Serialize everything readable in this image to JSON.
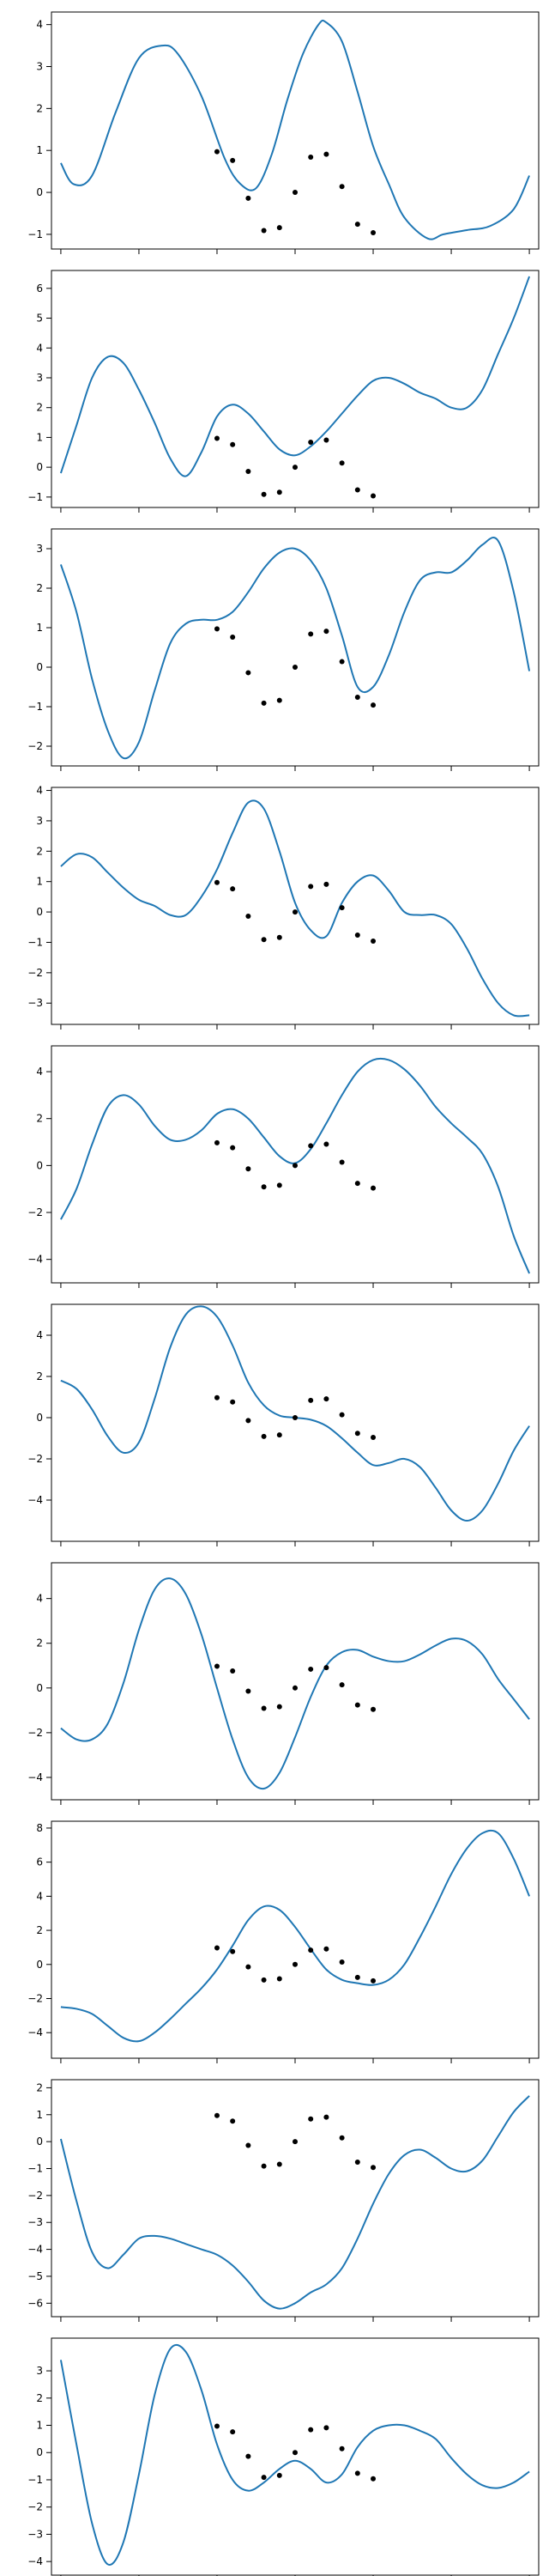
{
  "chart_data": {
    "type": "line",
    "title": "",
    "xlabel": "",
    "ylabel": "",
    "xlim": [
      -15.6,
      15.6
    ],
    "xticks": [
      -15,
      -10,
      -5,
      0,
      5,
      10,
      15
    ],
    "shared_x": true,
    "grid": false,
    "legend": "none",
    "colors": {
      "curve": "#1f77b4",
      "points": "#000000"
    },
    "observations": {
      "x": [
        -5,
        -4,
        -3,
        -2,
        -1,
        0,
        1,
        2,
        3,
        4,
        5
      ],
      "y": [
        0.97,
        0.76,
        -0.14,
        -0.91,
        -0.84,
        0.0,
        0.84,
        0.91,
        0.14,
        -0.76,
        -0.96
      ]
    },
    "panels": [
      {
        "ylim": [
          -1.35,
          4.3
        ],
        "yticks": [
          -1,
          0,
          1,
          2,
          3,
          4
        ],
        "curve": {
          "x": [
            -15,
            -14.2,
            -13,
            -11.5,
            -10,
            -8.5,
            -7.5,
            -6,
            -4.5,
            -3.5,
            -2.5,
            -1.5,
            -0.5,
            0.5,
            1.5,
            2,
            3,
            4,
            5,
            6,
            7,
            8.5,
            9.5,
            11,
            12.5,
            14,
            15
          ],
          "y": [
            0.7,
            0.2,
            0.4,
            1.9,
            3.2,
            3.5,
            3.3,
            2.3,
            0.8,
            0.2,
            0.1,
            0.9,
            2.2,
            3.3,
            4.0,
            4.05,
            3.6,
            2.4,
            1.1,
            0.2,
            -0.6,
            -1.1,
            -1.0,
            -0.9,
            -0.8,
            -0.4,
            0.4
          ]
        }
      },
      {
        "ylim": [
          -1.35,
          6.6
        ],
        "yticks": [
          -1,
          0,
          1,
          2,
          3,
          4,
          5,
          6
        ],
        "curve": {
          "x": [
            -15,
            -14,
            -13,
            -12,
            -11,
            -10,
            -9,
            -8,
            -7,
            -6,
            -5,
            -4,
            -3,
            -2,
            -1,
            0,
            1,
            2,
            3,
            4,
            5,
            6,
            7,
            8,
            9,
            10,
            11,
            12,
            13,
            14,
            15
          ],
          "y": [
            -0.2,
            1.4,
            3.0,
            3.7,
            3.5,
            2.6,
            1.5,
            0.3,
            -0.3,
            0.5,
            1.7,
            2.1,
            1.8,
            1.2,
            0.6,
            0.4,
            0.7,
            1.2,
            1.8,
            2.4,
            2.9,
            3.0,
            2.8,
            2.5,
            2.3,
            2.0,
            2.0,
            2.6,
            3.8,
            5.0,
            6.4
          ]
        }
      },
      {
        "ylim": [
          -2.5,
          3.5
        ],
        "yticks": [
          -2,
          -1,
          0,
          1,
          2,
          3
        ],
        "curve": {
          "x": [
            -15,
            -14,
            -13,
            -12,
            -11,
            -10,
            -9,
            -8,
            -7,
            -6,
            -5,
            -4,
            -3,
            -2,
            -1,
            0,
            1,
            2,
            3,
            4,
            5,
            6,
            7,
            8,
            9,
            10,
            11,
            12,
            13,
            14,
            15
          ],
          "y": [
            2.6,
            1.4,
            -0.3,
            -1.6,
            -2.3,
            -1.9,
            -0.6,
            0.6,
            1.1,
            1.2,
            1.2,
            1.4,
            1.9,
            2.5,
            2.9,
            3.0,
            2.7,
            2.0,
            0.8,
            -0.5,
            -0.5,
            0.3,
            1.4,
            2.2,
            2.4,
            2.4,
            2.7,
            3.1,
            3.2,
            1.9,
            -0.1
          ]
        }
      },
      {
        "ylim": [
          -3.7,
          4.1
        ],
        "yticks": [
          -3,
          -2,
          -1,
          0,
          1,
          2,
          3,
          4
        ],
        "curve": {
          "x": [
            -15,
            -14,
            -13,
            -12,
            -11,
            -10,
            -9,
            -8,
            -7,
            -6,
            -5,
            -4,
            -3,
            -2,
            -1,
            0,
            1,
            2,
            3,
            4,
            5,
            6,
            7,
            8,
            9,
            10,
            11,
            12,
            13,
            14,
            15
          ],
          "y": [
            1.5,
            1.9,
            1.8,
            1.3,
            0.8,
            0.4,
            0.2,
            -0.1,
            -0.1,
            0.5,
            1.4,
            2.6,
            3.6,
            3.4,
            2.0,
            0.3,
            -0.6,
            -0.8,
            0.3,
            1.0,
            1.2,
            0.7,
            0.0,
            -0.1,
            -0.1,
            -0.4,
            -1.2,
            -2.2,
            -3.0,
            -3.4,
            -3.4
          ]
        }
      },
      {
        "ylim": [
          -5.0,
          5.1
        ],
        "yticks": [
          -4,
          -2,
          0,
          2,
          4
        ],
        "curve": {
          "x": [
            -15,
            -14,
            -13,
            -12,
            -11,
            -10,
            -9,
            -8,
            -7,
            -6,
            -5,
            -4,
            -3,
            -2,
            -1,
            0,
            1,
            2,
            3,
            4,
            5,
            6,
            7,
            8,
            9,
            10,
            11,
            12,
            13,
            14,
            15
          ],
          "y": [
            -2.3,
            -1.0,
            0.9,
            2.5,
            3.0,
            2.6,
            1.7,
            1.1,
            1.1,
            1.5,
            2.2,
            2.4,
            2.0,
            1.2,
            0.4,
            0.1,
            0.7,
            1.8,
            3.0,
            4.0,
            4.5,
            4.5,
            4.1,
            3.4,
            2.5,
            1.8,
            1.2,
            0.5,
            -0.9,
            -3.0,
            -4.6
          ]
        }
      },
      {
        "ylim": [
          -6.0,
          5.5
        ],
        "yticks": [
          -4,
          -2,
          0,
          2,
          4
        ],
        "curve": {
          "x": [
            -15,
            -14,
            -13,
            -12,
            -11,
            -10,
            -9,
            -8,
            -7,
            -6,
            -5,
            -4,
            -3,
            -2,
            -1,
            0,
            1,
            2,
            3,
            4,
            5,
            6,
            7,
            8,
            9,
            10,
            11,
            12,
            13,
            14,
            15
          ],
          "y": [
            1.8,
            1.4,
            0.4,
            -0.9,
            -1.7,
            -1.2,
            0.9,
            3.4,
            5.0,
            5.4,
            4.9,
            3.5,
            1.7,
            0.6,
            0.1,
            0.0,
            -0.1,
            -0.4,
            -1.0,
            -1.7,
            -2.3,
            -2.2,
            -2.0,
            -2.4,
            -3.4,
            -4.5,
            -5.0,
            -4.5,
            -3.2,
            -1.6,
            -0.4
          ]
        }
      },
      {
        "ylim": [
          -5.0,
          5.6
        ],
        "yticks": [
          -4,
          -2,
          0,
          2,
          4
        ],
        "curve": {
          "x": [
            -15,
            -14,
            -13,
            -12,
            -11,
            -10,
            -9,
            -8,
            -7,
            -6,
            -5,
            -4,
            -3,
            -2,
            -1,
            0,
            1,
            2,
            3,
            4,
            5,
            6,
            7,
            8,
            9,
            10,
            11,
            12,
            13,
            14,
            15
          ],
          "y": [
            -1.8,
            -2.3,
            -2.3,
            -1.6,
            0.2,
            2.6,
            4.4,
            4.9,
            4.2,
            2.4,
            0.0,
            -2.3,
            -4.0,
            -4.5,
            -3.8,
            -2.2,
            -0.4,
            1.0,
            1.6,
            1.7,
            1.4,
            1.2,
            1.2,
            1.5,
            1.9,
            2.2,
            2.1,
            1.5,
            0.4,
            -0.5,
            -1.4
          ]
        }
      },
      {
        "ylim": [
          -5.5,
          8.4
        ],
        "yticks": [
          -4,
          -2,
          0,
          2,
          4,
          6,
          8
        ],
        "curve": {
          "x": [
            -15,
            -14,
            -13,
            -12,
            -11,
            -10,
            -9,
            -8,
            -7,
            -6,
            -5,
            -4,
            -3,
            -2,
            -1,
            0,
            1,
            2,
            3,
            4,
            5,
            6,
            7,
            8,
            9,
            10,
            11,
            12,
            13,
            14,
            15
          ],
          "y": [
            -2.5,
            -2.6,
            -2.9,
            -3.6,
            -4.3,
            -4.5,
            -4.0,
            -3.2,
            -2.3,
            -1.4,
            -0.3,
            1.1,
            2.6,
            3.4,
            3.2,
            2.2,
            0.9,
            -0.3,
            -0.9,
            -1.1,
            -1.2,
            -0.9,
            0.0,
            1.6,
            3.4,
            5.3,
            6.8,
            7.7,
            7.7,
            6.2,
            4.0
          ]
        }
      },
      {
        "ylim": [
          -6.5,
          2.3
        ],
        "yticks": [
          -6,
          -5,
          -4,
          -3,
          -2,
          -1,
          0,
          1,
          2
        ],
        "curve": {
          "x": [
            -15,
            -14,
            -13,
            -12,
            -11,
            -10,
            -9,
            -8,
            -7,
            -6,
            -5,
            -4,
            -3,
            -2,
            -1,
            0,
            1,
            2,
            3,
            4,
            5,
            6,
            7,
            8,
            9,
            10,
            11,
            12,
            13,
            14,
            15
          ],
          "y": [
            0.1,
            -2.2,
            -4.1,
            -4.7,
            -4.2,
            -3.6,
            -3.5,
            -3.6,
            -3.8,
            -4.0,
            -4.2,
            -4.6,
            -5.2,
            -5.9,
            -6.2,
            -6.0,
            -5.6,
            -5.3,
            -4.7,
            -3.6,
            -2.3,
            -1.2,
            -0.5,
            -0.3,
            -0.6,
            -1.0,
            -1.1,
            -0.7,
            0.2,
            1.1,
            1.7
          ]
        }
      },
      {
        "ylim": [
          -4.5,
          4.2
        ],
        "yticks": [
          -4,
          -3,
          -2,
          -1,
          0,
          1,
          2,
          3
        ],
        "curve": {
          "x": [
            -15,
            -14,
            -13,
            -12,
            -11,
            -10,
            -9,
            -8,
            -7,
            -6,
            -5,
            -4,
            -3,
            -2,
            -1,
            0,
            1,
            2,
            3,
            4,
            5,
            6,
            7,
            8,
            9,
            10,
            11,
            12,
            13,
            14,
            15
          ],
          "y": [
            3.4,
            0.3,
            -2.6,
            -4.1,
            -3.3,
            -0.8,
            2.1,
            3.8,
            3.7,
            2.3,
            0.3,
            -1.0,
            -1.4,
            -1.1,
            -0.6,
            -0.3,
            -0.6,
            -1.1,
            -0.8,
            0.2,
            0.8,
            1.0,
            1.0,
            0.8,
            0.5,
            -0.2,
            -0.8,
            -1.2,
            -1.3,
            -1.1,
            -0.7
          ]
        }
      }
    ]
  }
}
